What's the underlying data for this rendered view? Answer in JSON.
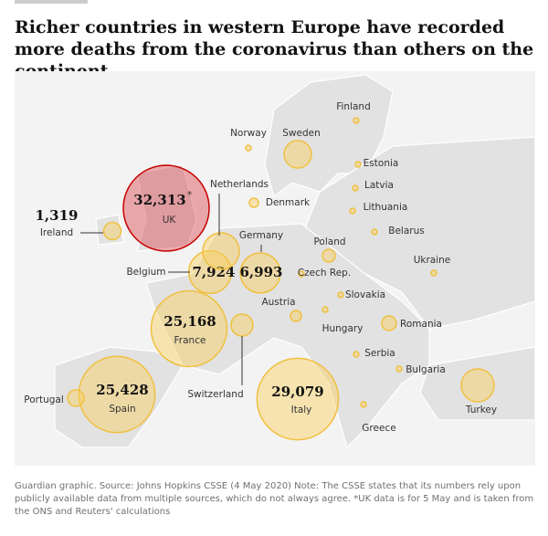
{
  "header": {
    "title": "Richer countries in western Europe have recorded more deaths from the coronavirus than others on the continent"
  },
  "countries": [
    {
      "name": "UK",
      "value": 32313,
      "value_label": "32,313",
      "note_mark": "*"
    },
    {
      "name": "Ireland",
      "value": 1319,
      "value_label": "1,319"
    },
    {
      "name": "Belgium",
      "value": 7924,
      "value_label": "7,924"
    },
    {
      "name": "Germany",
      "value": 6993,
      "value_label": "6,993"
    },
    {
      "name": "France",
      "value": 25168,
      "value_label": "25,168"
    },
    {
      "name": "Spain",
      "value": 25428,
      "value_label": "25,428"
    },
    {
      "name": "Italy",
      "value": 29079,
      "value_label": "29,079"
    }
  ],
  "other_countries": [
    "Finland",
    "Norway",
    "Sweden",
    "Netherlands",
    "Denmark",
    "Estonia",
    "Latvia",
    "Lithuania",
    "Belarus",
    "Poland",
    "Ukraine",
    "Czech Rep.",
    "Slovakia",
    "Austria",
    "Hungary",
    "Romania",
    "Serbia",
    "Bulgaria",
    "Switzerland",
    "Portugal",
    "Turkey",
    "Greece"
  ],
  "footer": {
    "source": "Guardian graphic. Source: Johns Hopkins CSSE (4 May 2020) Note: The CSSE states that its numbers rely upon publicly available data from multiple sources, which do not always agree. *UK data is for 5 May and is taken from the ONS and Reuters' calculations"
  }
}
